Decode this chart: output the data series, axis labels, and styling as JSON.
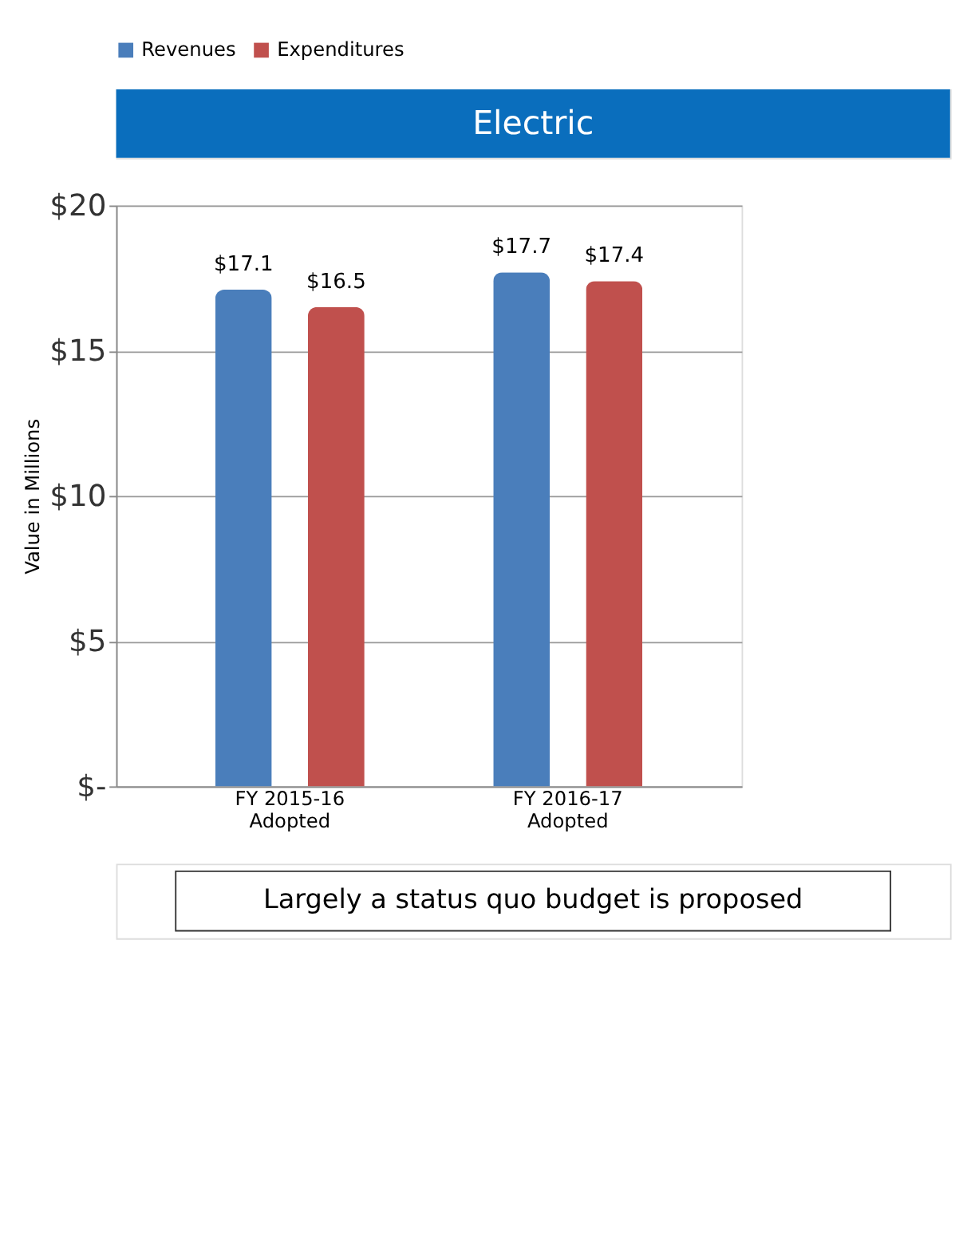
{
  "chart_data": {
    "type": "bar",
    "title": "Electric",
    "ylabel": "Value in Millions",
    "categories": [
      "FY 2015-16\nAdopted",
      "FY 2016-17\nAdopted"
    ],
    "series": [
      {
        "name": "Revenues",
        "color": "#4a7ebb",
        "values": [
          17.1,
          17.7
        ],
        "value_labels": [
          "$17.1",
          "$17.7"
        ]
      },
      {
        "name": "Expenditures",
        "color": "#c0504d",
        "values": [
          16.5,
          17.4
        ],
        "value_labels": [
          "$16.5",
          "$17.4"
        ]
      }
    ],
    "ylim": [
      0,
      20
    ],
    "yticks": [
      {
        "value": 0,
        "label": "$-"
      },
      {
        "value": 5,
        "label": "$5"
      },
      {
        "value": 10,
        "label": "$10"
      },
      {
        "value": 15,
        "label": "$15"
      },
      {
        "value": 20,
        "label": "$20"
      }
    ],
    "grid": "y",
    "legend": "top",
    "annotations": [
      "Largely a status quo budget is proposed"
    ]
  }
}
